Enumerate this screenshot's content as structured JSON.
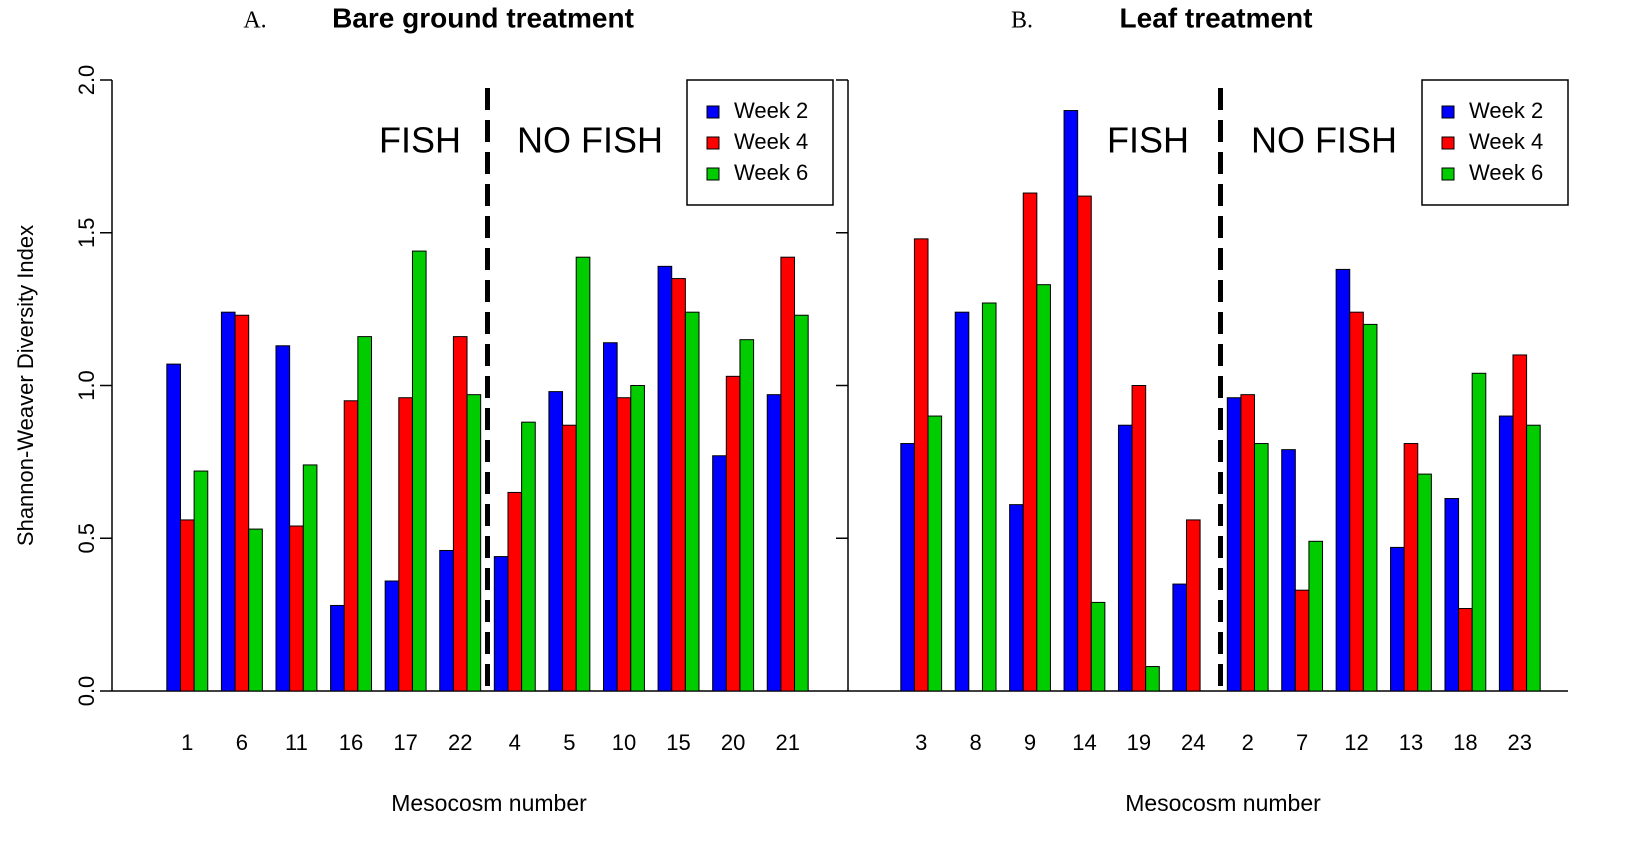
{
  "chart_data": [
    {
      "type": "bar",
      "panel_label": "A.",
      "title": "Bare ground treatment",
      "y_label": "Shannon-Weaver Diversity Index",
      "x_label": "Mesocosm number",
      "annotations": [
        "FISH",
        "NO FISH"
      ],
      "categories": [
        "1",
        "6",
        "11",
        "16",
        "17",
        "22",
        "4",
        "5",
        "10",
        "15",
        "20",
        "21"
      ],
      "series": [
        {
          "name": "Week 2",
          "color": "#0000ff",
          "values": [
            1.07,
            1.24,
            1.13,
            0.28,
            0.36,
            0.46,
            0.44,
            0.98,
            1.14,
            1.39,
            0.77,
            0.97
          ]
        },
        {
          "name": "Week 4",
          "color": "#ff0000",
          "values": [
            0.56,
            1.23,
            0.54,
            0.95,
            0.96,
            1.16,
            0.65,
            0.87,
            0.96,
            1.35,
            1.03,
            1.42
          ]
        },
        {
          "name": "Week 6",
          "color": "#00cc00",
          "values": [
            0.72,
            0.53,
            0.74,
            1.16,
            1.44,
            0.97,
            0.88,
            1.42,
            1.0,
            1.24,
            1.15,
            1.23
          ]
        }
      ],
      "ylim": [
        0,
        2
      ],
      "yticks": [
        {
          "value": 0,
          "label": "0.0"
        },
        {
          "value": 0.5,
          "label": "0.5"
        },
        {
          "value": 1,
          "label": "1.0"
        },
        {
          "value": 1.5,
          "label": "1.5"
        },
        {
          "value": 2,
          "label": "2.0"
        }
      ],
      "legend": "top-right"
    },
    {
      "type": "bar",
      "panel_label": "B.",
      "title": "Leaf treatment",
      "x_label": "Mesocosm number",
      "annotations": [
        "FISH",
        "NO FISH"
      ],
      "categories": [
        "3",
        "8",
        "9",
        "14",
        "19",
        "24",
        "2",
        "7",
        "12",
        "13",
        "18",
        "23"
      ],
      "series": [
        {
          "name": "Week 2",
          "color": "#0000ff",
          "values": [
            0.81,
            1.24,
            0.61,
            1.9,
            0.87,
            0.35,
            0.96,
            0.79,
            1.38,
            0.47,
            0.63,
            0.9
          ]
        },
        {
          "name": "Week 4",
          "color": "#ff0000",
          "values": [
            1.48,
            0,
            1.63,
            1.62,
            1.0,
            0.56,
            0.97,
            0.33,
            1.24,
            0.81,
            0.27,
            1.1
          ]
        },
        {
          "name": "Week 6",
          "color": "#00cc00",
          "values": [
            0.9,
            1.27,
            1.33,
            0.29,
            0.08,
            0,
            0.81,
            0.49,
            1.2,
            0.71,
            1.04,
            0.87
          ]
        }
      ],
      "ylim": [
        0,
        2
      ],
      "yticks": [
        0,
        0.5,
        1,
        1.5,
        2
      ],
      "legend": "top-right"
    }
  ]
}
